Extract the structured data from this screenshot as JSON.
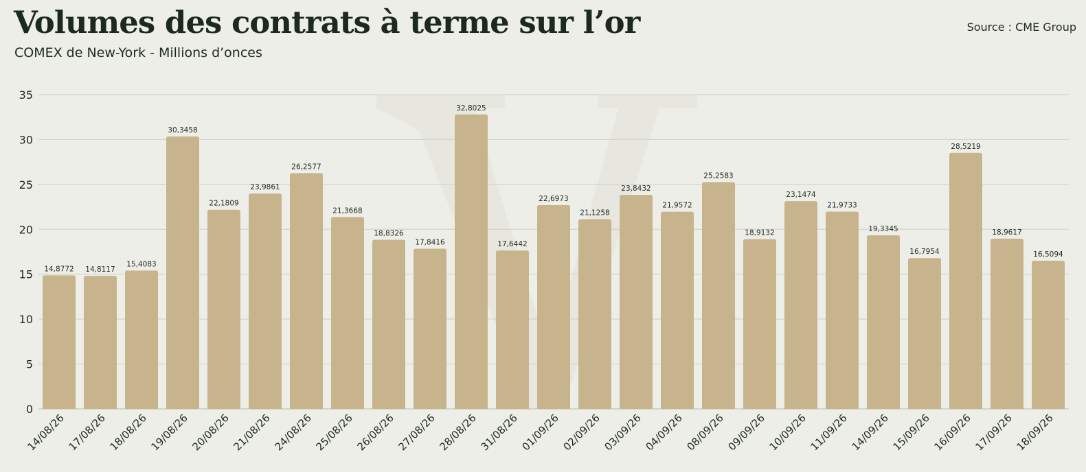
{
  "header": {
    "title": "Volumes des contrats à terme sur l’or",
    "subtitle": "COMEX de New-York - Millions d’onces",
    "source": "Source : CME Group"
  },
  "colors": {
    "bar": "#c8b48c",
    "grid": "#cfcfc8",
    "text": "#1c2a1e",
    "background": "#eeeee8",
    "watermark": "#e4e4dc"
  },
  "chart_data": {
    "type": "bar",
    "title": "Volumes des contrats à terme sur l’or",
    "subtitle": "COMEX de New-York - Millions d’onces",
    "ylim": [
      0,
      35
    ],
    "yticks": [
      0,
      5,
      10,
      15,
      20,
      25,
      30,
      35
    ],
    "grid": true,
    "categories": [
      "14/08/26",
      "17/08/26",
      "18/08/26",
      "19/08/26",
      "20/08/26",
      "21/08/26",
      "24/08/26",
      "25/08/26",
      "26/08/26",
      "27/08/26",
      "28/08/26",
      "31/08/26",
      "01/09/26",
      "02/09/26",
      "03/09/26",
      "04/09/26",
      "08/09/26",
      "09/09/26",
      "10/09/26",
      "11/09/26",
      "14/09/26",
      "15/09/26",
      "16/09/26",
      "17/09/26",
      "18/09/26"
    ],
    "values": [
      14.8772,
      14.8117,
      15.4083,
      30.3458,
      22.1809,
      23.9861,
      26.2577,
      21.3668,
      18.8326,
      17.8416,
      32.8025,
      17.6442,
      22.6973,
      21.1258,
      23.8432,
      21.9572,
      25.2583,
      18.9132,
      23.1474,
      21.9733,
      19.3345,
      16.7954,
      28.5219,
      18.9617,
      16.5094
    ],
    "labels": [
      "14,8772",
      "14,8117",
      "15,4083",
      "30,3458",
      "22,1809",
      "23,9861",
      "26,2577",
      "21,3668",
      "18,8326",
      "17,8416",
      "32,8025",
      "17,6442",
      "22,6973",
      "21,1258",
      "23,8432",
      "21,9572",
      "25,2583",
      "18,9132",
      "23,1474",
      "21,9733",
      "19,3345",
      "16,7954",
      "28,5219",
      "18,9617",
      "16,5094"
    ]
  }
}
